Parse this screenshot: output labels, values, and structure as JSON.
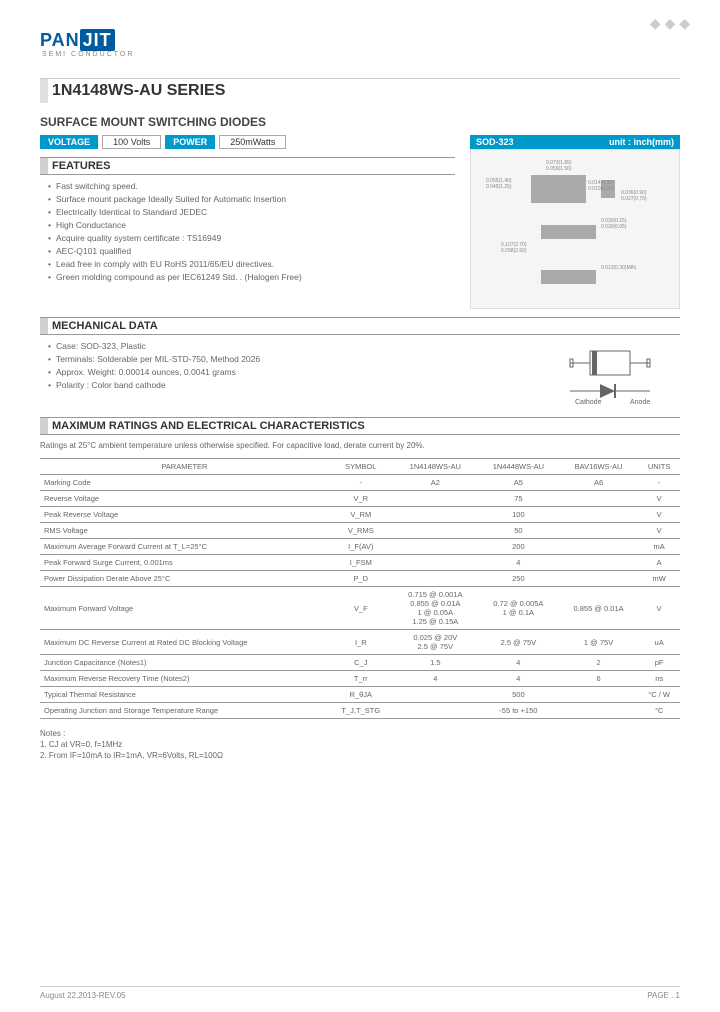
{
  "logo": {
    "brand_pan": "PAN",
    "brand_jit": "JIT",
    "sub": "SEMI CONDUCTOR"
  },
  "deco": "◆ ◆ ◆",
  "title": "1N4148WS-AU SERIES",
  "subtitle": "SURFACE MOUNT SWITCHING DIODES",
  "specs": {
    "voltage_label": "VOLTAGE",
    "voltage_val": "100 Volts",
    "power_label": "POWER",
    "power_val": "250mWatts"
  },
  "sections": {
    "features": "FEATURES",
    "mechanical": "MECHANICAL DATA",
    "ratings": "MAXIMUM RATINGS AND ELECTRICAL CHARACTERISTICS"
  },
  "features": [
    "Fast switching speed.",
    "Surface mount package Ideally Suited for Automatic Insertion",
    "Electrically Identical to Standard JEDEC",
    "High Conductance",
    "Acquire quality system certificate : TS16949",
    "AEC-Q101 qualified",
    "Lead free in comply with EU RoHS 2011/65/EU directives.",
    "Green molding compound as per IEC61249 Std. . (Halogen Free)"
  ],
  "sod": {
    "header": "SOD-323",
    "unit": "unit : inch(mm)",
    "labels": [
      "0.073(1.85)",
      "0.059(1.50)",
      "0.055(1.40)",
      "0.049(1.25)",
      "0.014(0.35)",
      "0.010(0.25)",
      "0.036(0.90)",
      "0.027(0.70)",
      "0.030(0.15)",
      "0.030(0.05)",
      "0.107(2.70)",
      "0.098(2.50)",
      "0.012(0.30)MIN."
    ]
  },
  "mechanical": [
    "Case: SOD-323, Plastic",
    "Terminals: Solderable per MIL-STD-750, Method 2026",
    "Approx. Weight: 0.00014 ounces, 0.0041 grams",
    "Polarity : Color band cathode"
  ],
  "diode": {
    "cathode": "Cathode",
    "anode": "Anode"
  },
  "ratings_note": "Ratings at 25°C ambient temperature unless otherwise specified.  For capacitive load, derate current by 20%.",
  "table": {
    "headers": [
      "PARAMETER",
      "SYMBOL",
      "1N4148WS-AU",
      "1N4448WS-AU",
      "BAV16WS-AU",
      "UNITS"
    ],
    "rows": [
      [
        "Marking Code",
        "-",
        "A2",
        "A5",
        "A6",
        "-"
      ],
      [
        "Reverse Voltage",
        "V_R",
        "",
        "75",
        "",
        "V"
      ],
      [
        "Peak Reverse Voltage",
        "V_RM",
        "",
        "100",
        "",
        "V"
      ],
      [
        "RMS Voltage",
        "V_RMS",
        "",
        "50",
        "",
        "V"
      ],
      [
        "Maximum Average Forward Current at T_L=25°C",
        "I_F(AV)",
        "",
        "200",
        "",
        "mA"
      ],
      [
        "Peak Forward Surge Current, 0.001ms",
        "I_FSM",
        "",
        "4",
        "",
        "A"
      ],
      [
        "Power Dissipation Derate Above 25°C",
        "P_D",
        "",
        "250",
        "",
        "mW"
      ],
      [
        "Maximum Forward Voltage",
        "V_F",
        "0.715 @ 0.001A\n0.855 @ 0.01A\n1 @ 0.05A\n1.25 @ 0.15A",
        "0.72 @ 0.005A\n1 @ 0.1A",
        "0.855 @ 0.01A",
        "V"
      ],
      [
        "Maximum DC Reverse Current at Rated DC Blocking Voltage",
        "I_R",
        "0.025 @ 20V\n2.5 @ 75V",
        "2.5 @ 75V",
        "1 @ 75V",
        "uA"
      ],
      [
        "Junction Capacitance (Notes1)",
        "C_J",
        "1.5",
        "4",
        "2",
        "pF"
      ],
      [
        "Maximum Reverse Recovery Time (Notes2)",
        "T_rr",
        "4",
        "4",
        "6",
        "ns"
      ],
      [
        "Typical Thermal Resistance",
        "R_θJA",
        "",
        "500",
        "",
        "°C / W"
      ],
      [
        "Operating Junction and Storage Temperature Range",
        "T_J,T_STG",
        "",
        "-55 to +150",
        "",
        "°C"
      ]
    ]
  },
  "notes": {
    "title": "Notes :",
    "items": [
      "1. CJ at VR=0, f=1MHz",
      "2. From IF=10mA to IR=1mA, VR=6Volts, RL=100Ω"
    ]
  },
  "footer": {
    "date": "August 22,2013-REV.05",
    "page": "PAGE . 1"
  },
  "colors": {
    "accent": "#0099cc",
    "brand": "#005a9c",
    "text": "#666",
    "border": "#999"
  }
}
